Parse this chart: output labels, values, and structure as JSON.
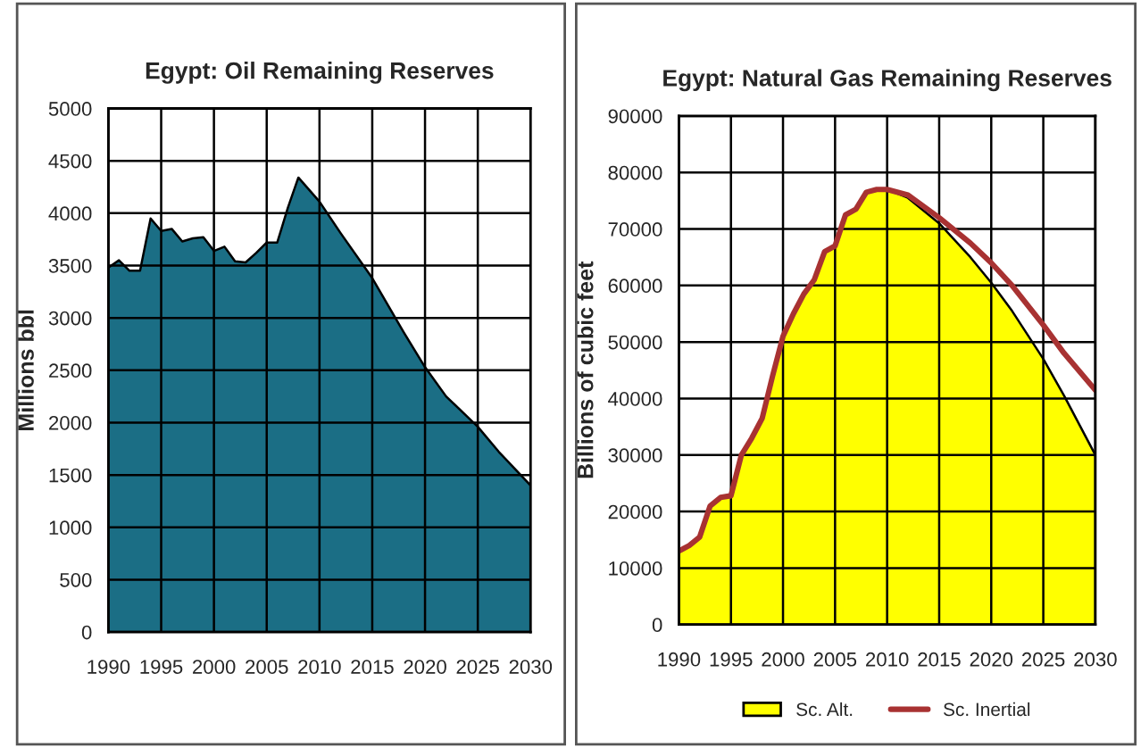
{
  "chart_data": [
    {
      "type": "area",
      "title": "Egypt: Oil Remaining Reserves",
      "ylabel": "Millions bbl",
      "x": [
        1990,
        1991,
        1992,
        1993,
        1994,
        1995,
        1996,
        1997,
        1998,
        1999,
        2000,
        2001,
        2002,
        2003,
        2004,
        2005,
        2006,
        2007,
        2008,
        2010,
        2012,
        2015,
        2018,
        2020,
        2022,
        2025,
        2027,
        2030
      ],
      "series": [
        {
          "color": "#1b6e85",
          "values": [
            3480,
            3550,
            3450,
            3450,
            3950,
            3830,
            3850,
            3730,
            3760,
            3770,
            3640,
            3680,
            3540,
            3530,
            3620,
            3720,
            3720,
            4050,
            4340,
            4110,
            3810,
            3380,
            2860,
            2530,
            2250,
            1960,
            1720,
            1400
          ]
        }
      ],
      "xlim": [
        1990,
        2030
      ],
      "xticks": [
        1990,
        1995,
        2000,
        2005,
        2010,
        2015,
        2020,
        2025,
        2030
      ],
      "ylim": [
        0,
        5000
      ],
      "yticks": [
        0,
        500,
        1000,
        1500,
        2000,
        2500,
        3000,
        3500,
        4000,
        4500,
        5000
      ],
      "grid": true,
      "legend": false
    },
    {
      "type": "area",
      "title": "Egypt: Natural Gas Remaining Reserves",
      "ylabel": "Billions of cubic feet",
      "x": [
        1990,
        1991,
        1992,
        1993,
        1994,
        1995,
        1996,
        1997,
        1998,
        1999,
        2000,
        2001,
        2002,
        2003,
        2004,
        2005,
        2006,
        2007,
        2008,
        2009,
        2010,
        2012,
        2015,
        2018,
        2020,
        2022,
        2025,
        2027,
        2030
      ],
      "series": [
        {
          "name": "Sc. Alt.",
          "type": "area",
          "color": "#ffff00",
          "values": [
            13000,
            14000,
            15500,
            21000,
            22500,
            22800,
            30000,
            33000,
            36500,
            44000,
            51000,
            55000,
            58500,
            61000,
            66000,
            67000,
            72500,
            73500,
            76500,
            77000,
            77000,
            75500,
            71000,
            65000,
            60500,
            55500,
            47000,
            40500,
            30000
          ]
        },
        {
          "name": "Sc. Inertial",
          "type": "line",
          "color": "#a83232",
          "values": [
            13000,
            14000,
            15500,
            21000,
            22500,
            22800,
            30000,
            33000,
            36500,
            44000,
            51000,
            55000,
            58500,
            61000,
            66000,
            67000,
            72500,
            73500,
            76500,
            77000,
            77000,
            76000,
            72000,
            67500,
            64000,
            60000,
            53000,
            48000,
            41500
          ]
        }
      ],
      "xlim": [
        1990,
        2030
      ],
      "xticks": [
        1990,
        1995,
        2000,
        2005,
        2010,
        2015,
        2020,
        2025,
        2030
      ],
      "ylim": [
        0,
        90000
      ],
      "yticks": [
        0,
        10000,
        20000,
        30000,
        40000,
        50000,
        60000,
        70000,
        80000,
        90000
      ],
      "grid": true,
      "legend": "bottom"
    }
  ]
}
